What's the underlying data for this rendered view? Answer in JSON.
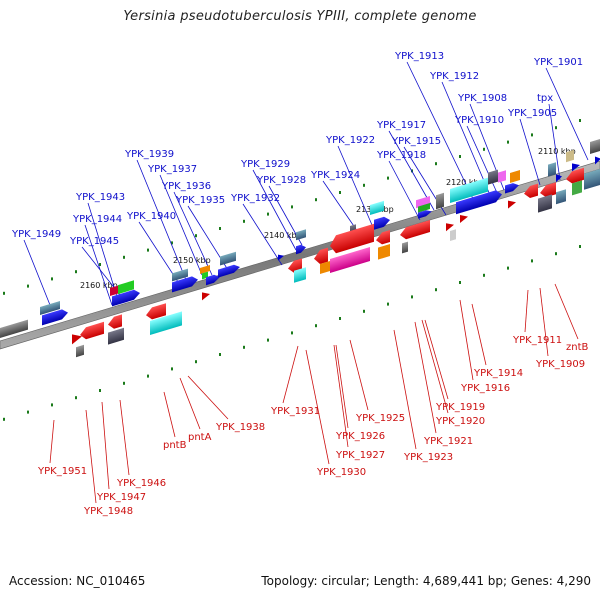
{
  "title": "Yersinia pseudotuberculosis YPIII, complete genome",
  "footer": {
    "accession": "Accession: NC_010465",
    "stats": "Topology: circular; Length: 4,689,441 bp; Genes: 4,290"
  },
  "colors": {
    "forward_label": "#1010cc",
    "reverse_label": "#cc1010",
    "backbone": "#888888",
    "tick_marks": "#1a7a1a"
  },
  "ticks": [
    "2110 kbp",
    "2120 kbp",
    "2130 kbp",
    "2140 kbp",
    "2150 kbp",
    "2160 kbp"
  ],
  "forward_genes": [
    "YPK_1901",
    "tpx",
    "YPK_1905",
    "YPK_1908",
    "YPK_1910",
    "YPK_1912",
    "YPK_1913",
    "YPK_1915",
    "YPK_1917",
    "YPK_1918",
    "YPK_1922",
    "YPK_1924",
    "YPK_1928",
    "YPK_1929",
    "YPK_1932",
    "YPK_1935",
    "YPK_1936",
    "YPK_1937",
    "YPK_1939",
    "YPK_1940",
    "YPK_1943",
    "YPK_1944",
    "YPK_1945",
    "YPK_1949"
  ],
  "reverse_genes": [
    "YPK_1911",
    "zntB",
    "YPK_1909",
    "YPK_1914",
    "YPK_1916",
    "YPK_1919",
    "YPK_1920",
    "YPK_1921",
    "YPK_1923",
    "YPK_1925",
    "YPK_1926",
    "YPK_1927",
    "YPK_1930",
    "YPK_1931",
    "YPK_1938",
    "pntA",
    "pntB",
    "YPK_1946",
    "YPK_1947",
    "YPK_1948",
    "YPK_1951"
  ]
}
